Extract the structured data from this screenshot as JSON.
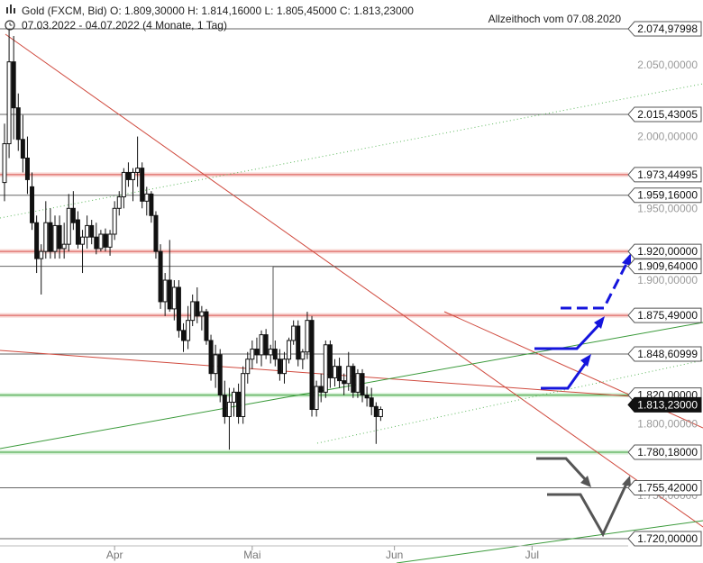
{
  "header": {
    "line1": "Gold (FXCM, Bid)  O: 1.809,30000  H: 1.814,16000  L: 1.805,45000  C: 1.813,23000",
    "line2": "07.03.2022 - 04.07.2022  (4 Monate, 1 Tag)",
    "annotation": "Allzeithoch vom 07.08.2020"
  },
  "chart_data": {
    "type": "candlestick",
    "title": "Gold (FXCM, Bid)",
    "period": "07.03.2022 - 04.07.2022",
    "ylim": [
      1715,
      2083
    ],
    "x_labels": [
      {
        "label": "Apr",
        "day": 24
      },
      {
        "label": "Mai",
        "day": 54
      },
      {
        "label": "Jun",
        "day": 85
      },
      {
        "label": "Jul",
        "day": 115
      }
    ],
    "y_ticks": [
      "2.050,00000",
      "2.000,00000",
      "1.950,00000",
      "1.900,00000",
      "1.800,00000",
      "1.750,00000"
    ],
    "y_tick_values": [
      2050,
      2000,
      1950,
      1900,
      1800,
      1750
    ],
    "levels": [
      {
        "value": 2074.97998,
        "label": "2.074,97998",
        "kind": "gray"
      },
      {
        "value": 2015.43005,
        "label": "2.015,43005",
        "kind": "gray"
      },
      {
        "value": 1973.44995,
        "label": "1.973,44995",
        "kind": "red"
      },
      {
        "value": 1959.16,
        "label": "1.959,16000",
        "kind": "gray"
      },
      {
        "value": 1920.0,
        "label": "1.920,00000",
        "kind": "red"
      },
      {
        "value": 1909.64,
        "label": "1.909,64000",
        "kind": "gray"
      },
      {
        "value": 1875.49,
        "label": "1.875,49000",
        "kind": "red"
      },
      {
        "value": 1848.60999,
        "label": "1.848,60999",
        "kind": "gray"
      },
      {
        "value": 1820.0,
        "label": "1.820,00000",
        "kind": "green"
      },
      {
        "value": 1780.18,
        "label": "1.780,18000",
        "kind": "green"
      },
      {
        "value": 1755.42,
        "label": "1.755,42000",
        "kind": "gray"
      },
      {
        "value": 1720.0,
        "label": "1.720,00000",
        "kind": "gray"
      }
    ],
    "current_price": {
      "value": 1813.23,
      "label": "1.813,23000"
    },
    "candles": [
      [
        0,
        1968,
        2009,
        1955,
        1995
      ],
      [
        1,
        1995,
        2075,
        1985,
        2052
      ],
      [
        2,
        2052,
        2070,
        1998,
        2020
      ],
      [
        3,
        2020,
        2030,
        1990,
        1998
      ],
      [
        4,
        1998,
        2015,
        1975,
        1985
      ],
      [
        5,
        1985,
        2000,
        1960,
        1970
      ],
      [
        6,
        1965,
        1975,
        1935,
        1940
      ],
      [
        7,
        1940,
        1945,
        1905,
        1915
      ],
      [
        8,
        1915,
        1925,
        1890,
        1920
      ],
      [
        9,
        1920,
        1955,
        1915,
        1940
      ],
      [
        10,
        1940,
        1950,
        1915,
        1920
      ],
      [
        11,
        1920,
        1945,
        1915,
        1938
      ],
      [
        12,
        1938,
        1945,
        1915,
        1922
      ],
      [
        13,
        1922,
        1940,
        1915,
        1925
      ],
      [
        14,
        1925,
        1960,
        1920,
        1950
      ],
      [
        15,
        1950,
        1962,
        1935,
        1940
      ],
      [
        16,
        1942,
        1948,
        1922,
        1925
      ],
      [
        17,
        1925,
        1935,
        1905,
        1930
      ],
      [
        18,
        1930,
        1945,
        1922,
        1938
      ],
      [
        19,
        1938,
        1942,
        1925,
        1930
      ],
      [
        20,
        1930,
        1940,
        1918,
        1922
      ],
      [
        21,
        1922,
        1935,
        1920,
        1932
      ],
      [
        22,
        1932,
        1936,
        1920,
        1923
      ],
      [
        23,
        1923,
        1935,
        1917,
        1932
      ],
      [
        24,
        1932,
        1955,
        1928,
        1950
      ],
      [
        25,
        1950,
        1962,
        1945,
        1958
      ],
      [
        26,
        1958,
        1978,
        1950,
        1975
      ],
      [
        27,
        1975,
        1982,
        1965,
        1970
      ],
      [
        28,
        1970,
        1978,
        1955,
        1975
      ],
      [
        29,
        1975,
        2000,
        1965,
        1978
      ],
      [
        30,
        1978,
        1982,
        1950,
        1955
      ],
      [
        31,
        1955,
        1965,
        1945,
        1960
      ],
      [
        32,
        1960,
        1962,
        1940,
        1945
      ],
      [
        33,
        1945,
        1948,
        1915,
        1920
      ],
      [
        34,
        1920,
        1925,
        1880,
        1885
      ],
      [
        35,
        1885,
        1905,
        1875,
        1900
      ],
      [
        36,
        1900,
        1928,
        1878,
        1880
      ],
      [
        37,
        1880,
        1900,
        1872,
        1895
      ],
      [
        38,
        1895,
        1900,
        1860,
        1865
      ],
      [
        39,
        1865,
        1870,
        1850,
        1858
      ],
      [
        40,
        1858,
        1882,
        1852,
        1872
      ],
      [
        41,
        1872,
        1890,
        1868,
        1885
      ],
      [
        42,
        1885,
        1895,
        1870,
        1875
      ],
      [
        43,
        1875,
        1882,
        1865,
        1878
      ],
      [
        44,
        1878,
        1880,
        1855,
        1858
      ],
      [
        45,
        1858,
        1862,
        1830,
        1835
      ],
      [
        46,
        1835,
        1855,
        1825,
        1848
      ],
      [
        47,
        1848,
        1852,
        1815,
        1820
      ],
      [
        48,
        1820,
        1830,
        1800,
        1805
      ],
      [
        49,
        1805,
        1825,
        1782,
        1815
      ],
      [
        50,
        1815,
        1825,
        1805,
        1822
      ],
      [
        51,
        1822,
        1828,
        1800,
        1805
      ],
      [
        52,
        1805,
        1840,
        1800,
        1835
      ],
      [
        53,
        1835,
        1850,
        1828,
        1845
      ],
      [
        54,
        1845,
        1858,
        1838,
        1852
      ],
      [
        55,
        1852,
        1860,
        1842,
        1848
      ],
      [
        56,
        1848,
        1865,
        1840,
        1862
      ],
      [
        57,
        1862,
        1866,
        1845,
        1848
      ],
      [
        58,
        1848,
        1855,
        1842,
        1852
      ],
      [
        59,
        1852,
        1858,
        1840,
        1845
      ],
      [
        60,
        1845,
        1852,
        1830,
        1835
      ],
      [
        61,
        1835,
        1850,
        1828,
        1845
      ],
      [
        62,
        1845,
        1860,
        1842,
        1858
      ],
      [
        63,
        1858,
        1872,
        1855,
        1868
      ],
      [
        64,
        1868,
        1872,
        1840,
        1845
      ],
      [
        65,
        1845,
        1852,
        1838,
        1850
      ],
      [
        66,
        1850,
        1878,
        1845,
        1872
      ],
      [
        67,
        1872,
        1875,
        1805,
        1810
      ],
      [
        68,
        1810,
        1830,
        1805,
        1826
      ],
      [
        69,
        1826,
        1835,
        1815,
        1822
      ],
      [
        70,
        1822,
        1858,
        1818,
        1855
      ],
      [
        71,
        1855,
        1858,
        1825,
        1832
      ],
      [
        72,
        1832,
        1845,
        1826,
        1840
      ],
      [
        73,
        1840,
        1846,
        1825,
        1830
      ],
      [
        74,
        1830,
        1835,
        1820,
        1828
      ],
      [
        75,
        1828,
        1850,
        1823,
        1840
      ],
      [
        76,
        1840,
        1842,
        1818,
        1822
      ],
      [
        77,
        1822,
        1838,
        1818,
        1835
      ],
      [
        78,
        1835,
        1838,
        1815,
        1820
      ],
      [
        79,
        1820,
        1826,
        1812,
        1818
      ],
      [
        80,
        1818,
        1825,
        1806,
        1812
      ],
      [
        81,
        1812,
        1815,
        1786,
        1805
      ],
      [
        82,
        1805,
        1812,
        1802,
        1810
      ]
    ]
  }
}
